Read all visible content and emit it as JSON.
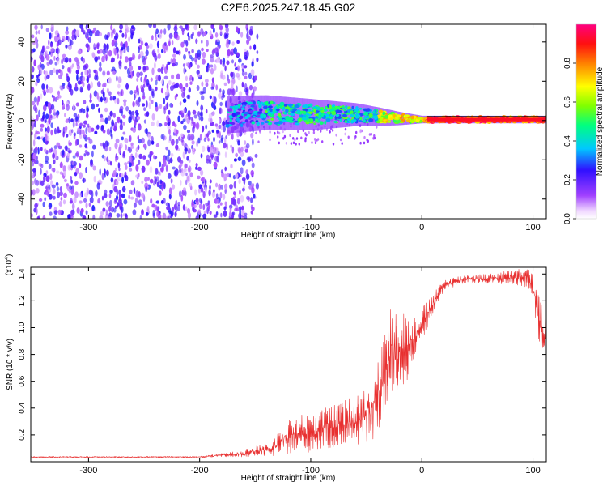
{
  "title": "C2E6.2025.247.18.45.G02",
  "chart_data": [
    {
      "type": "heatmap",
      "name": "spectrogram",
      "xlabel": "Height of straight line (km)",
      "ylabel": "Frequency (Hz)",
      "xlim": [
        -352,
        112
      ],
      "ylim": [
        -50,
        49
      ],
      "xticks": [
        -300,
        -200,
        -100,
        0,
        100
      ],
      "yticks": [
        -40,
        -20,
        0,
        20,
        40
      ],
      "noise_region_x": [
        -352,
        -148
      ],
      "signal": {
        "start_x": -175,
        "mean_frequency": [
          [
            -175,
            3
          ],
          [
            -140,
            4
          ],
          [
            -100,
            3
          ],
          [
            -60,
            3
          ],
          [
            -40,
            2
          ],
          [
            -20,
            1
          ],
          [
            0,
            0.5
          ],
          [
            112,
            0.5
          ]
        ],
        "band_halfwidth": [
          [
            -175,
            6
          ],
          [
            -100,
            5
          ],
          [
            -40,
            3
          ],
          [
            0,
            1.2
          ],
          [
            112,
            1.2
          ]
        ]
      },
      "colorbar": {
        "label": "Normalized spectral amplitude",
        "range": [
          0,
          1
        ],
        "ticks": [
          0.0,
          0.2,
          0.4,
          0.6,
          0.8
        ],
        "tick_labels": [
          "0.0",
          "0.2",
          "0.4",
          "0.6",
          "0.8"
        ]
      }
    },
    {
      "type": "line",
      "name": "snr",
      "xlabel": "Height of straight line (km)",
      "ylabel": "SNR (10 * v/v)",
      "scale_label": "(x10",
      "scale_exponent": "4",
      "xlim": [
        -352,
        112
      ],
      "ylim": [
        0,
        14500
      ],
      "xticks": [
        -300,
        -200,
        -100,
        0,
        100
      ],
      "yticks": [
        2000,
        4000,
        6000,
        8000,
        10000,
        12000,
        14000
      ],
      "ytick_labels": [
        "0.2",
        "0.4",
        "0.6",
        "0.8",
        "1.0",
        "1.2",
        "1.4"
      ],
      "color": "#e83030",
      "envelope": [
        [
          -352,
          300,
          400
        ],
        [
          -200,
          300,
          400
        ],
        [
          -165,
          350,
          800
        ],
        [
          -135,
          400,
          1500
        ],
        [
          -125,
          500,
          3000
        ],
        [
          -100,
          700,
          3800
        ],
        [
          -80,
          1000,
          4200
        ],
        [
          -60,
          1200,
          5000
        ],
        [
          -45,
          1500,
          6000
        ],
        [
          -35,
          3000,
          9000
        ],
        [
          -30,
          4000,
          11500
        ],
        [
          -25,
          4500,
          12000
        ],
        [
          -15,
          5500,
          11500
        ],
        [
          -10,
          7000,
          10500
        ],
        [
          0,
          9000,
          11500
        ],
        [
          10,
          11000,
          12500
        ],
        [
          20,
          12800,
          13600
        ],
        [
          40,
          13300,
          14000
        ],
        [
          60,
          13300,
          14000
        ],
        [
          80,
          13200,
          14300
        ],
        [
          95,
          13000,
          14500
        ],
        [
          100,
          12000,
          14000
        ],
        [
          105,
          9000,
          12500
        ],
        [
          112,
          8000,
          10500
        ]
      ]
    }
  ]
}
